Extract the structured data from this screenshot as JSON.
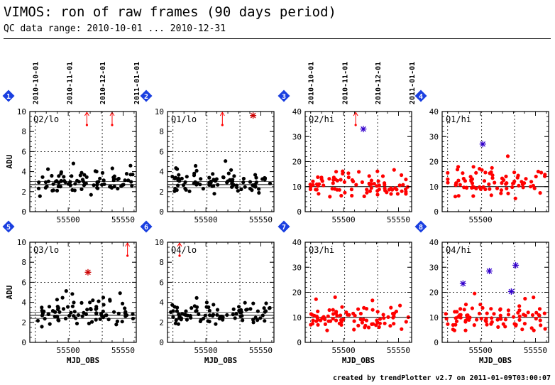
{
  "header": {
    "title": "VIMOS: ron of raw frames (90 days period)",
    "subtitle": "QC data range: 2010-10-01 ... 2010-12-31"
  },
  "footer": "created by trendPlotter v2.7 on 2011-01-09T03:00:07",
  "colors": {
    "lo_points": "#000000",
    "hi_points": "#ff0000",
    "outlier_hi": "#3300cc",
    "outlier_lo": "#cc0000",
    "arrow": "#ff0000",
    "badge": "#1a3fe0"
  },
  "date_ticks": [
    "2010-10-01",
    "2010-11-01",
    "2010-12-01",
    "2011-01-01"
  ],
  "chart_data": [
    {
      "panel": "1",
      "label": "Q2/lo",
      "type": "scatter",
      "ylim": [
        0,
        10
      ],
      "yticks": [
        0,
        2,
        4,
        6,
        8,
        10
      ],
      "ylabel": "ADU",
      "xlabel": "",
      "xticks": [
        55500,
        55550
      ],
      "show_dates": true,
      "color_key": "lo_points",
      "x_range": [
        55465,
        55562
      ],
      "baseline": 2.7,
      "band": 0.3,
      "y_mean": 2.9,
      "y_spread": 0.5,
      "n_points": 85,
      "seed": 11,
      "limit_lines": [
        6
      ],
      "outliers": [],
      "arrows": [
        55517,
        55540
      ]
    },
    {
      "panel": "2",
      "label": "Q1/lo",
      "type": "scatter",
      "ylim": [
        0,
        10
      ],
      "yticks": [
        0,
        2,
        4,
        6,
        8,
        10
      ],
      "ylabel": "",
      "xlabel": "",
      "xticks": [
        55500,
        55550
      ],
      "show_dates": false,
      "color_key": "lo_points",
      "x_range": [
        55465,
        55562
      ],
      "baseline": 2.7,
      "band": 0.3,
      "y_mean": 3.0,
      "y_spread": 0.55,
      "n_points": 85,
      "seed": 23,
      "limit_lines": [
        6
      ],
      "outliers": [
        {
          "x": 55543,
          "y": 9.6,
          "key": "outlier_lo"
        }
      ],
      "arrows": [
        55515
      ]
    },
    {
      "panel": "3",
      "label": "Q2/hi",
      "type": "scatter",
      "ylim": [
        0,
        40
      ],
      "yticks": [
        0,
        10,
        20,
        30,
        40
      ],
      "ylabel": "",
      "xlabel": "",
      "xticks": [
        55500,
        55550
      ],
      "show_dates": true,
      "color_key": "hi_points",
      "x_range": [
        55465,
        55562
      ],
      "baseline": 10,
      "band": 0,
      "y_mean": 10.5,
      "y_spread": 2.6,
      "n_points": 85,
      "seed": 37,
      "limit_lines": [
        20
      ],
      "outliers": [
        {
          "x": 55518,
          "y": 33,
          "key": "outlier_hi"
        }
      ],
      "arrows": [
        55511
      ]
    },
    {
      "panel": "4",
      "label": "Q1/hi",
      "type": "scatter",
      "ylim": [
        0,
        40
      ],
      "yticks": [
        0,
        10,
        20,
        30,
        40
      ],
      "ylabel": "",
      "xlabel": "",
      "xticks": [
        55500
      ],
      "show_dates": false,
      "color_key": "hi_points",
      "x_range": [
        55465,
        55562
      ],
      "baseline": 10,
      "band": 0,
      "y_mean": 11,
      "y_spread": 2.6,
      "n_points": 85,
      "seed": 41,
      "limit_lines": [
        20
      ],
      "outliers": [
        {
          "x": 55502,
          "y": 27,
          "key": "outlier_hi"
        }
      ],
      "arrows": []
    },
    {
      "panel": "5",
      "label": "Q3/lo",
      "type": "scatter",
      "ylim": [
        0,
        10
      ],
      "yticks": [
        0,
        2,
        4,
        6,
        8,
        10
      ],
      "ylabel": "ADU",
      "xlabel": "MJD_OBS",
      "xticks": [
        55500,
        55550
      ],
      "show_dates": false,
      "color_key": "lo_points",
      "x_range": [
        55465,
        55562
      ],
      "baseline": 2.7,
      "band": 0.3,
      "y_mean": 3.0,
      "y_spread": 0.6,
      "n_points": 85,
      "seed": 53,
      "limit_lines": [
        6
      ],
      "outliers": [
        {
          "x": 55518,
          "y": 7.0,
          "key": "outlier_lo"
        }
      ],
      "arrows": [
        55554
      ]
    },
    {
      "panel": "6",
      "label": "Q4/lo",
      "type": "scatter",
      "ylim": [
        0,
        10
      ],
      "yticks": [
        0,
        2,
        4,
        6,
        8,
        10
      ],
      "ylabel": "",
      "xlabel": "MJD_OBS",
      "xticks": [
        55500,
        55550
      ],
      "show_dates": false,
      "color_key": "lo_points",
      "x_range": [
        55465,
        55562
      ],
      "baseline": 2.7,
      "band": 0.3,
      "y_mean": 2.8,
      "y_spread": 0.45,
      "n_points": 85,
      "seed": 67,
      "limit_lines": [
        6
      ],
      "outliers": [],
      "arrows": [
        55476
      ]
    },
    {
      "panel": "7",
      "label": "Q3/hi",
      "type": "scatter",
      "ylim": [
        0,
        40
      ],
      "yticks": [
        0,
        10,
        20,
        30,
        40
      ],
      "ylabel": "",
      "xlabel": "MJD_OBS",
      "xticks": [
        55500,
        55550
      ],
      "show_dates": false,
      "color_key": "hi_points",
      "x_range": [
        55465,
        55562
      ],
      "baseline": 10,
      "band": 0,
      "y_mean": 10,
      "y_spread": 2.6,
      "n_points": 85,
      "seed": 79,
      "limit_lines": [
        20
      ],
      "outliers": [],
      "arrows": []
    },
    {
      "panel": "8",
      "label": "Q4/hi",
      "type": "scatter",
      "ylim": [
        0,
        40
      ],
      "yticks": [
        0,
        10,
        20,
        30,
        40
      ],
      "ylabel": "",
      "xlabel": "MJD_OBS",
      "xticks": [
        55500,
        55550
      ],
      "show_dates": false,
      "color_key": "hi_points",
      "x_range": [
        55465,
        55562
      ],
      "baseline": 10,
      "band": 0,
      "y_mean": 10,
      "y_spread": 2.6,
      "n_points": 85,
      "seed": 83,
      "limit_lines": [
        20
      ],
      "outliers": [
        {
          "x": 55484,
          "y": 23.5,
          "key": "outlier_hi"
        },
        {
          "x": 55508,
          "y": 28.5,
          "key": "outlier_hi"
        },
        {
          "x": 55528,
          "y": 20.3,
          "key": "outlier_hi"
        },
        {
          "x": 55532,
          "y": 30.8,
          "key": "outlier_hi"
        }
      ],
      "arrows": []
    }
  ]
}
